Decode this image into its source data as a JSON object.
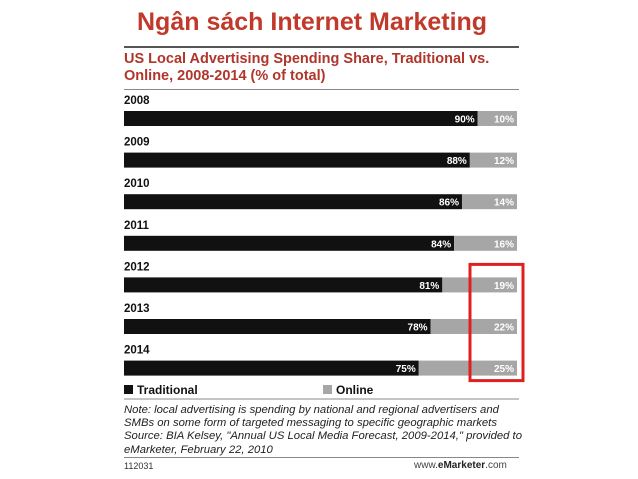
{
  "slide_title": "Ngân sách Internet Marketing",
  "chart_title": "US Local Advertising Spending Share, Traditional vs. Online, 2008-2014 (% of total)",
  "chart_data": {
    "type": "bar",
    "orientation": "horizontal-stacked",
    "categories": [
      "2008",
      "2009",
      "2010",
      "2011",
      "2012",
      "2013",
      "2014"
    ],
    "series": [
      {
        "name": "Traditional",
        "values": [
          90,
          88,
          86,
          84,
          81,
          78,
          75
        ],
        "labels": [
          "90%",
          "88%",
          "86%",
          "84%",
          "81%",
          "78%",
          "75%"
        ]
      },
      {
        "name": "Online",
        "values": [
          10,
          12,
          14,
          16,
          19,
          22,
          25
        ],
        "labels": [
          "10%",
          "12%",
          "14%",
          "16%",
          "19%",
          "22%",
          "25%"
        ]
      }
    ],
    "xlim": [
      0,
      100
    ],
    "legend_position": "bottom-left",
    "highlight": {
      "series": "Online",
      "categories": [
        "2012",
        "2013",
        "2014"
      ],
      "color": "#e02020"
    }
  },
  "colors": {
    "traditional": "#111111",
    "online": "#a6a6a6",
    "title_red": "#c0392b",
    "highlight": "#e02020"
  },
  "note": "Note: local advertising is spending by national and regional advertisers and SMBs on some form of targeted messaging to specific geographic markets",
  "source": "Source: BIA Kelsey, \"Annual US Local Media Forecast, 2009-2014,\" provided to eMarketer, February 22, 2010",
  "chart_code": "112031",
  "site_prefix": "www.",
  "site_brand": "eMarketer",
  "site_suffix": ".com"
}
